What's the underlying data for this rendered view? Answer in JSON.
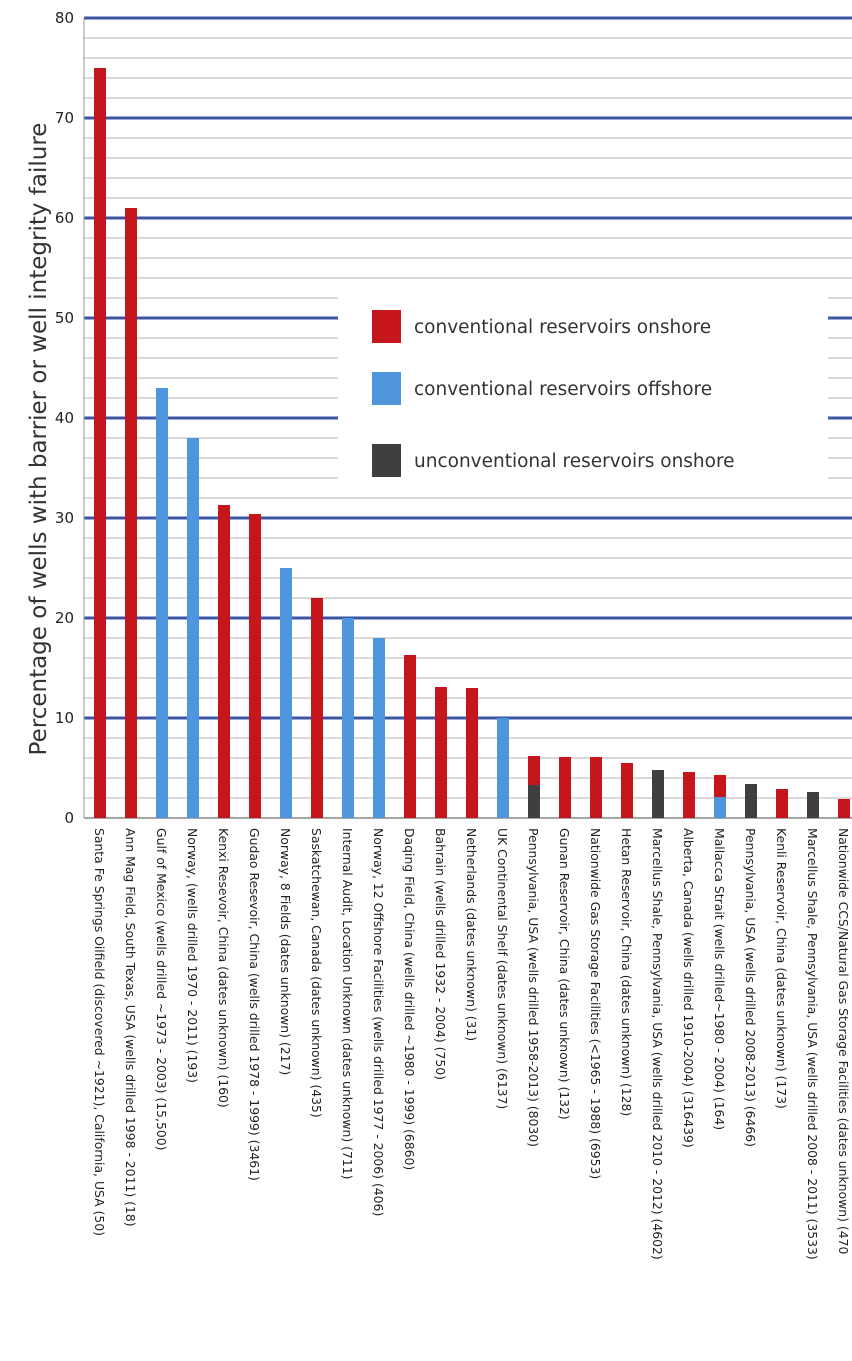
{
  "chart_data": {
    "type": "bar",
    "ylabel": "Percentage of wells with barrier or well integrity failure",
    "xlabel": "",
    "ylim": [
      0,
      80
    ],
    "yticks": [
      0,
      10,
      20,
      30,
      40,
      50,
      60,
      70,
      80
    ],
    "grid": true,
    "legend_position": "center-right",
    "colors": {
      "onshore": "#c4161c",
      "offshore": "#4f95dd",
      "unconventional": "#3f3f3f",
      "major_grid": "#3a55a6",
      "minor_grid": "#b5b5b5"
    },
    "series": [
      {
        "key": "onshore",
        "name": "conventional reservoirs onshore"
      },
      {
        "key": "offshore",
        "name": "conventional reservoirs offshore"
      },
      {
        "key": "unconventional",
        "name": "unconventional reservoirs onshore"
      }
    ],
    "bars": [
      {
        "label": "Santa Fe Springs Oilfield (discovered ~1921), California, USA (50)",
        "segments": [
          {
            "series": "onshore",
            "value": 75
          }
        ]
      },
      {
        "label": "Ann Mag Field, South Texas, USA (wells drilled 1998 - 2011) (18)",
        "segments": [
          {
            "series": "onshore",
            "value": 61
          }
        ]
      },
      {
        "label": "Gulf of Mexico (wells drilled ~1973 - 2003) (15,500)",
        "segments": [
          {
            "series": "offshore",
            "value": 43
          }
        ]
      },
      {
        "label": "Norway, (wells drilled 1970 - 2011) (193)",
        "segments": [
          {
            "series": "offshore",
            "value": 38
          }
        ]
      },
      {
        "label": "Kenxi Resevoir, China (dates unknown) (160)",
        "segments": [
          {
            "series": "onshore",
            "value": 31.3
          }
        ]
      },
      {
        "label": "Gudao Resevoir, China (wells drilled 1978 - 1999) (3461)",
        "segments": [
          {
            "series": "onshore",
            "value": 30.4
          }
        ]
      },
      {
        "label": "Norway, 8 Fields (dates unknown) (217)",
        "segments": [
          {
            "series": "offshore",
            "value": 25
          }
        ]
      },
      {
        "label": "Saskatchewan, Canada (dates unknown) (435)",
        "segments": [
          {
            "series": "onshore",
            "value": 22
          }
        ]
      },
      {
        "label": "Internal Audit, Location Unknown (dates unknown) (711)",
        "segments": [
          {
            "series": "offshore",
            "value": 20
          }
        ]
      },
      {
        "label": "Norway, 12 Offshore Facilities (wells drilled 1977 - 2006) (406)",
        "segments": [
          {
            "series": "offshore",
            "value": 18
          }
        ]
      },
      {
        "label": "Daqing Field, China (wells drilled ~1980 - 1999) (6860)",
        "segments": [
          {
            "series": "onshore",
            "value": 16.3
          }
        ]
      },
      {
        "label": "Bahrain (wells drilled 1932 - 2004) (750)",
        "segments": [
          {
            "series": "onshore",
            "value": 13.1
          }
        ]
      },
      {
        "label": "Netherlands (dates unknown) (31)",
        "segments": [
          {
            "series": "onshore",
            "value": 13
          }
        ]
      },
      {
        "label": "UK Continental Shelf (dates unknown) (6137)",
        "segments": [
          {
            "series": "offshore",
            "value": 10
          }
        ]
      },
      {
        "label": "Pennsylvania, USA (wells drilled 1958-2013) (8030)",
        "segments": [
          {
            "series": "unconventional",
            "value": 3.3
          },
          {
            "series": "onshore",
            "value": 2.9
          }
        ]
      },
      {
        "label": "Gunan Reservoir, China (dates unknown) (132)",
        "segments": [
          {
            "series": "onshore",
            "value": 6.1
          }
        ]
      },
      {
        "label": "Nationwide Gas Storage Facilities (<1965 - 1988) (6953)",
        "segments": [
          {
            "series": "onshore",
            "value": 6.1
          }
        ]
      },
      {
        "label": "Hetan Reservoir, China (dates unknown) (128)",
        "segments": [
          {
            "series": "onshore",
            "value": 5.5
          }
        ]
      },
      {
        "label": "Marcellus Shale, Pennsylvania, USA (wells drilled 2010 - 2012) (4602)",
        "segments": [
          {
            "series": "unconventional",
            "value": 4.8
          }
        ]
      },
      {
        "label": "Alberta, Canada (wells drilled 1910-2004) (316439)",
        "segments": [
          {
            "series": "onshore",
            "value": 4.6
          }
        ]
      },
      {
        "label": "Mallacca Strait (wells drilled~1980 - 2004) (164)",
        "segments": [
          {
            "series": "offshore",
            "value": 2.1
          },
          {
            "series": "onshore",
            "value": 2.2
          }
        ]
      },
      {
        "label": "Pennsylvania, USA (wells drilled 2008-2013) (6466)",
        "segments": [
          {
            "series": "unconventional",
            "value": 3.4
          }
        ]
      },
      {
        "label": "Kenli Reservoir, China (dates unknown) (173)",
        "segments": [
          {
            "series": "onshore",
            "value": 2.9
          }
        ]
      },
      {
        "label": "Marcellus Shale, Pennsylvania, USA (wells drilled 2008 - 2011) (3533)",
        "segments": [
          {
            "series": "unconventional",
            "value": 2.6
          }
        ]
      },
      {
        "label": "Nationwide CCS/Natural Gas Storage Facilities (dates unknown) (470",
        "segments": [
          {
            "series": "onshore",
            "value": 1.9
          }
        ]
      }
    ]
  }
}
